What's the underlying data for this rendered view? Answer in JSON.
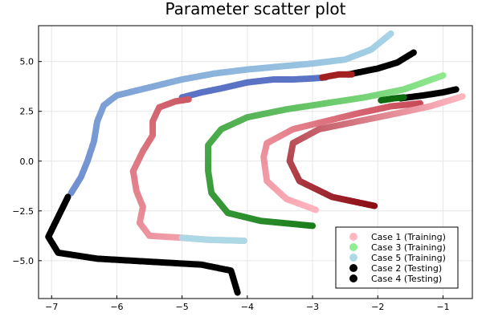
{
  "chart_data": {
    "type": "scatter",
    "title": "Parameter scatter plot",
    "xlabel": "",
    "ylabel": "",
    "xlim": [
      -7.2,
      -0.55
    ],
    "ylim": [
      -6.9,
      6.8
    ],
    "x_ticks": [
      -7,
      -6,
      -5,
      -4,
      -3,
      -2,
      -1
    ],
    "x_tick_labels": [
      "−7",
      "−6",
      "−5",
      "−4",
      "−3",
      "−2",
      "−1"
    ],
    "y_ticks": [
      -5.0,
      -2.5,
      0.0,
      2.5,
      5.0
    ],
    "y_tick_labels": [
      "−5.0",
      "−2.5",
      "0.0",
      "2.5",
      "5.0"
    ],
    "grid": true,
    "legend_position": "bottom-right",
    "legend": [
      {
        "label": "Case 1 (Training)",
        "color": "#ffb6c1"
      },
      {
        "label": "Case 3 (Training)",
        "color": "#90ee90"
      },
      {
        "label": "Case 5 (Training)",
        "color": "#add8e6"
      },
      {
        "label": "Case 2 (Testing)",
        "color": "#000000"
      },
      {
        "label": "Case 4 (Testing)",
        "color": "#000000"
      }
    ],
    "series": [
      {
        "name": "Case 5 (Training)",
        "gradient": [
          "#6f8fd0",
          "#a6d3e6"
        ],
        "points": [
          [
            -6.7,
            -1.6
          ],
          [
            -6.55,
            -0.8
          ],
          [
            -6.45,
            0.0
          ],
          [
            -6.35,
            1.0
          ],
          [
            -6.3,
            2.0
          ],
          [
            -6.2,
            2.8
          ],
          [
            -6.0,
            3.3
          ],
          [
            -5.5,
            3.7
          ],
          [
            -5.0,
            4.1
          ],
          [
            -4.5,
            4.4
          ],
          [
            -4.0,
            4.6
          ],
          [
            -3.5,
            4.75
          ],
          [
            -3.0,
            4.9
          ],
          [
            -2.5,
            5.1
          ],
          [
            -2.1,
            5.6
          ],
          [
            -1.8,
            6.4
          ]
        ]
      },
      {
        "name": "Case 5 (Training) lower",
        "gradient": [
          "#5b73c4",
          "#5b73c4"
        ],
        "points": [
          [
            -5.0,
            3.2
          ],
          [
            -4.7,
            3.45
          ],
          [
            -4.4,
            3.65
          ],
          [
            -4.2,
            3.8
          ],
          [
            -4.0,
            3.95
          ],
          [
            -3.6,
            4.1
          ],
          [
            -3.3,
            4.1
          ],
          [
            -3.0,
            4.15
          ],
          [
            -2.8,
            4.2
          ]
        ]
      },
      {
        "name": "Case 1 (Training) inner",
        "gradient": [
          "#ffb6c1",
          "#cc5a66"
        ],
        "points": [
          [
            -4.05,
            -4.0
          ],
          [
            -4.6,
            -3.95
          ],
          [
            -5.0,
            -3.85
          ],
          [
            -5.5,
            -3.75
          ],
          [
            -5.65,
            -3.1
          ],
          [
            -5.6,
            -2.3
          ],
          [
            -5.7,
            -1.5
          ],
          [
            -5.75,
            -0.5
          ],
          [
            -5.6,
            0.5
          ],
          [
            -5.45,
            1.3
          ],
          [
            -5.45,
            2.0
          ],
          [
            -5.35,
            2.7
          ],
          [
            -5.1,
            3.0
          ],
          [
            -4.9,
            3.1
          ]
        ]
      },
      {
        "name": "Case 1 (Training) inner-band",
        "gradient": [
          "#add8e6",
          "#add8e6"
        ],
        "points": [
          [
            -4.05,
            -4.0
          ],
          [
            -4.6,
            -3.95
          ],
          [
            -5.0,
            -3.85
          ]
        ]
      },
      {
        "name": "Case 3 (Training)",
        "gradient": [
          "#1a7d1a",
          "#8ee88e"
        ],
        "points": [
          [
            -3.0,
            -3.25
          ],
          [
            -3.8,
            -3.0
          ],
          [
            -4.3,
            -2.6
          ],
          [
            -4.55,
            -1.6
          ],
          [
            -4.6,
            -0.5
          ],
          [
            -4.6,
            0.8
          ],
          [
            -4.4,
            1.6
          ],
          [
            -4.0,
            2.2
          ],
          [
            -3.4,
            2.6
          ],
          [
            -2.8,
            2.9
          ],
          [
            -2.2,
            3.2
          ],
          [
            -1.6,
            3.6
          ],
          [
            -1.0,
            4.3
          ]
        ]
      },
      {
        "name": "Case 1 (Training) middle",
        "gradient": [
          "#ffb6c1",
          "#c94b58"
        ],
        "points": [
          [
            -2.95,
            -2.45
          ],
          [
            -3.4,
            -1.9
          ],
          [
            -3.7,
            -1.0
          ],
          [
            -3.75,
            0.2
          ],
          [
            -3.7,
            0.9
          ],
          [
            -3.3,
            1.6
          ],
          [
            -2.8,
            2.0
          ],
          [
            -2.3,
            2.4
          ],
          [
            -1.8,
            2.75
          ],
          [
            -1.35,
            2.9
          ]
        ]
      },
      {
        "name": "Case 1 (Training) outer",
        "gradient": [
          "#8b0a12",
          "#ffb6c1"
        ],
        "points": [
          [
            -2.05,
            -2.25
          ],
          [
            -2.7,
            -1.8
          ],
          [
            -3.2,
            -1.0
          ],
          [
            -3.35,
            0.0
          ],
          [
            -3.3,
            0.9
          ],
          [
            -2.9,
            1.6
          ],
          [
            -2.3,
            2.0
          ],
          [
            -1.7,
            2.4
          ],
          [
            -1.2,
            2.75
          ],
          [
            -0.7,
            3.25
          ]
        ]
      },
      {
        "name": "Case 2 (Testing)",
        "gradient": [
          "#000000",
          "#000000"
        ],
        "points": [
          [
            -4.15,
            -6.6
          ],
          [
            -4.25,
            -5.5
          ],
          [
            -4.7,
            -5.2
          ],
          [
            -5.5,
            -5.05
          ],
          [
            -6.3,
            -4.9
          ],
          [
            -6.9,
            -4.6
          ],
          [
            -7.05,
            -3.8
          ],
          [
            -6.9,
            -2.8
          ],
          [
            -6.75,
            -1.8
          ]
        ]
      },
      {
        "name": "Case 2 (Testing) end",
        "gradient": [
          "#000000",
          "#000000"
        ],
        "points": [
          [
            -2.45,
            4.35
          ],
          [
            -2.0,
            4.65
          ],
          [
            -1.7,
            4.95
          ],
          [
            -1.45,
            5.45
          ]
        ]
      },
      {
        "name": "Case 4 (Testing) end",
        "gradient": [
          "#000000",
          "#000000"
        ],
        "points": [
          [
            -1.65,
            3.15
          ],
          [
            -1.3,
            3.3
          ],
          [
            -1.0,
            3.45
          ],
          [
            -0.8,
            3.6
          ]
        ]
      },
      {
        "name": "accent-darkred",
        "gradient": [
          "#a32020",
          "#a32020"
        ],
        "points": [
          [
            -2.85,
            4.2
          ],
          [
            -2.6,
            4.35
          ],
          [
            -2.4,
            4.35
          ]
        ]
      },
      {
        "name": "accent-darkgreen",
        "gradient": [
          "#0f6b0f",
          "#0f6b0f"
        ],
        "points": [
          [
            -1.95,
            3.05
          ],
          [
            -1.75,
            3.15
          ],
          [
            -1.6,
            3.2
          ]
        ]
      }
    ]
  }
}
